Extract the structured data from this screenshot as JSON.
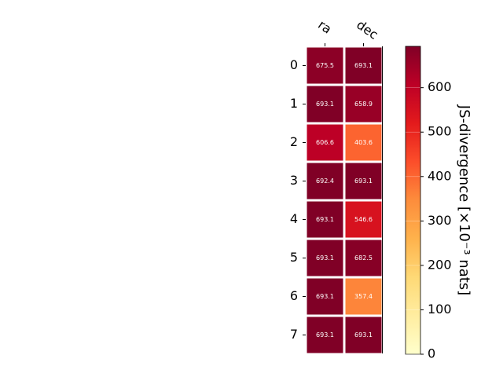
{
  "chart_data": {
    "type": "heatmap",
    "columns": [
      "ra",
      "dec"
    ],
    "rows": [
      "0",
      "1",
      "2",
      "3",
      "4",
      "5",
      "6",
      "7"
    ],
    "values": [
      [
        675.5,
        693.1
      ],
      [
        693.1,
        658.9
      ],
      [
        606.6,
        403.6
      ],
      [
        692.4,
        693.1
      ],
      [
        693.1,
        546.6
      ],
      [
        693.1,
        682.5
      ],
      [
        693.1,
        357.4
      ],
      [
        693.1,
        693.1
      ]
    ],
    "value_labels": [
      [
        "675.5",
        "693.1"
      ],
      [
        "693.1",
        "658.9"
      ],
      [
        "606.6",
        "403.6"
      ],
      [
        "692.4",
        "693.1"
      ],
      [
        "693.1",
        "546.6"
      ],
      [
        "693.1",
        "682.5"
      ],
      [
        "693.1",
        "357.4"
      ],
      [
        "693.1",
        "693.1"
      ]
    ],
    "colorbar": {
      "label": "JS-divergence [×10⁻³ nats]",
      "range": [
        0,
        693.1
      ],
      "ticks": [
        0,
        100,
        200,
        300,
        400,
        500,
        600
      ],
      "colormap": "YlOrRd"
    }
  }
}
